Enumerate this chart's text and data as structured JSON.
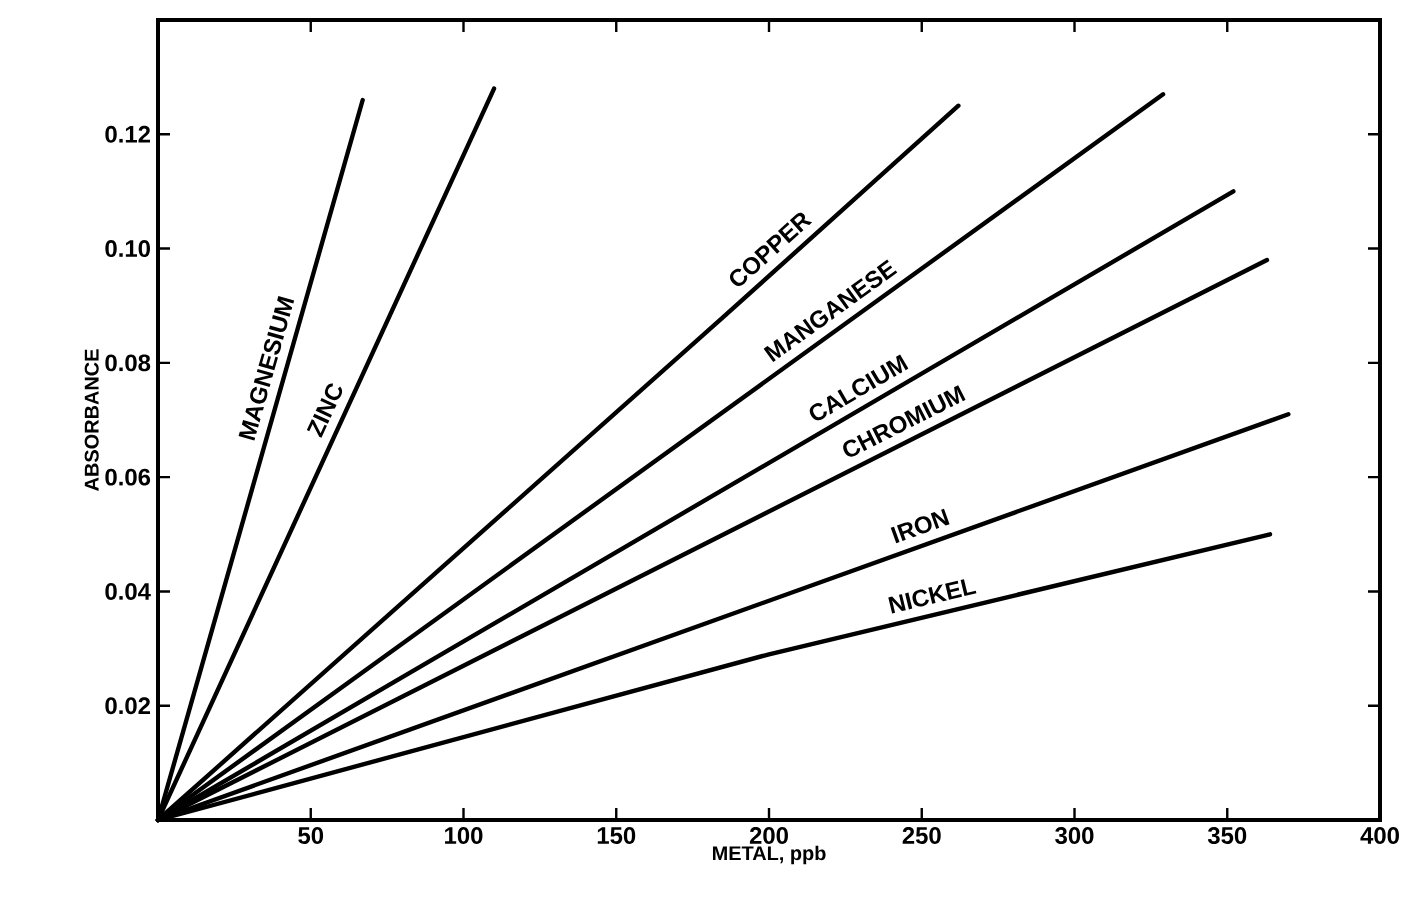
{
  "chart_data": {
    "type": "line",
    "xlabel": "METAL, ppb",
    "ylabel": "ABSORBANCE",
    "xlim": [
      0,
      400
    ],
    "ylim": [
      0,
      0.14
    ],
    "xticks": [
      50,
      100,
      150,
      200,
      250,
      300,
      350,
      400
    ],
    "yticks": [
      0.02,
      0.04,
      0.06,
      0.08,
      {
        "value": 0.1,
        "label": "0.10"
      },
      0.12
    ],
    "marker": "none",
    "line_style": "solid",
    "grid": false,
    "legend": false,
    "series": [
      {
        "name": "MAGNESIUM",
        "color": "#000000",
        "x": [
          0,
          67
        ],
        "values": [
          0,
          0.126
        ]
      },
      {
        "name": "ZINC",
        "color": "#000000",
        "x": [
          0,
          110
        ],
        "values": [
          0,
          0.128
        ]
      },
      {
        "name": "COPPER",
        "color": "#000000",
        "x": [
          0,
          185,
          262
        ],
        "values": [
          0,
          0.088,
          0.125
        ]
      },
      {
        "name": "MANGANESE",
        "color": "#000000",
        "x": [
          0,
          329
        ],
        "values": [
          0,
          0.127
        ]
      },
      {
        "name": "CALCIUM",
        "color": "#000000",
        "x": [
          0,
          352
        ],
        "values": [
          0,
          0.11
        ]
      },
      {
        "name": "CHROMIUM",
        "color": "#000000",
        "x": [
          0,
          363
        ],
        "values": [
          0,
          0.098
        ]
      },
      {
        "name": "IRON",
        "color": "#000000",
        "x": [
          0,
          370
        ],
        "values": [
          0,
          0.071
        ]
      },
      {
        "name": "NICKEL",
        "color": "#000000",
        "x": [
          0,
          200,
          364
        ],
        "values": [
          0,
          0.029,
          0.05
        ]
      }
    ]
  }
}
